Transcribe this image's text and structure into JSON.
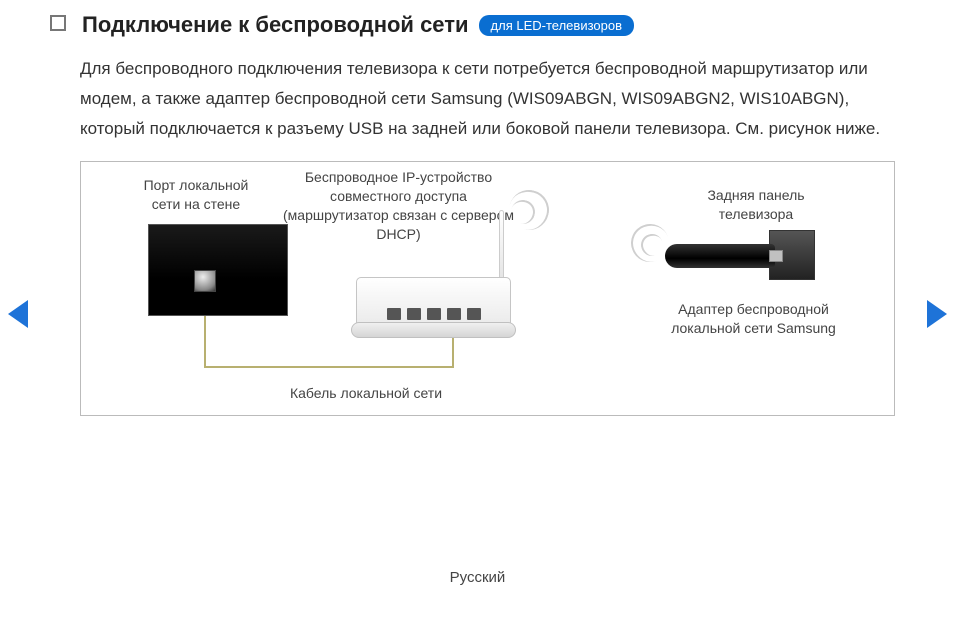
{
  "header": {
    "title": "Подключение к беспроводной сети",
    "badge": "для LED-телевизоров"
  },
  "body_text": "Для беспроводного подключения телевизора к сети потребуется беспроводной маршрутизатор или модем, а также адаптер беспроводной сети Samsung (WIS09ABGN, WIS09ABGN2, WIS10ABGN), который подключается к разъему USB на задней или боковой панели телевизора. См. рисунок ниже.",
  "diagram": {
    "wall_port_label": "Порт локальной сети на стене",
    "router_label": "Беспроводное IP-устройство совместного доступа (маршрутизатор связан с сервером DHCP)",
    "tv_panel_label": "Задняя панель телевизора",
    "adapter_label": "Адаптер беспроводной локальной сети Samsung",
    "cable_label": "Кабель локальной сети"
  },
  "footer": {
    "language": "Русский"
  },
  "colors": {
    "badge_bg": "#0a6ed1",
    "nav_arrow": "#1e73d8",
    "border": "#bbbbbb",
    "text": "#333333"
  }
}
